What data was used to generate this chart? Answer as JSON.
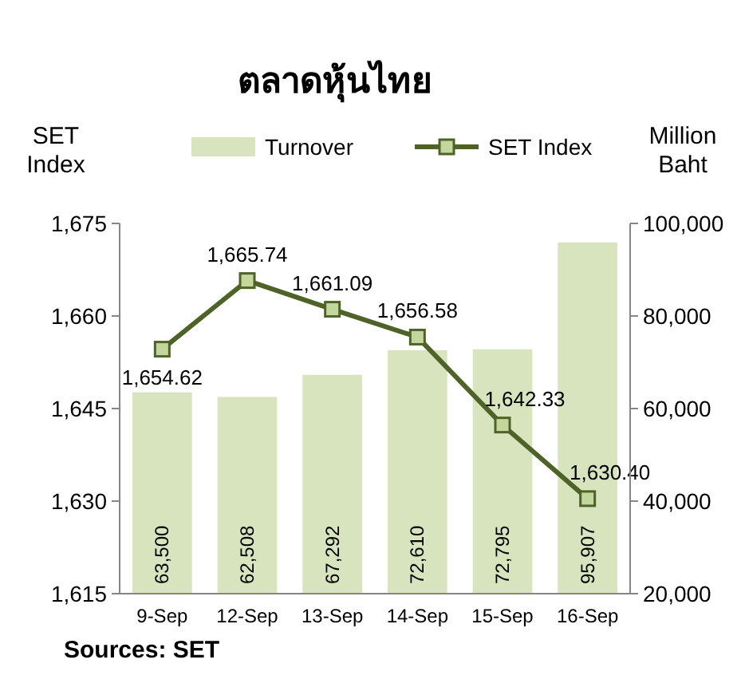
{
  "chart_data": {
    "type": "bar",
    "title": "ตลาดหุ้นไทย",
    "ylabel": "SET Index",
    "y2label": "Million Baht",
    "categories": [
      "9-Sep",
      "12-Sep",
      "13-Sep",
      "14-Sep",
      "15-Sep",
      "16-Sep"
    ],
    "series": [
      {
        "name": "Turnover",
        "axis": "y2",
        "color": "#d7e4bd",
        "values": [
          63500,
          62508,
          67292,
          72610,
          72795,
          95907
        ],
        "value_labels": [
          "63,500",
          "62,508",
          "67,292",
          "72,610",
          "72,795",
          "95,907"
        ]
      },
      {
        "name": "SET Index",
        "type": "line",
        "color": "#4f6228",
        "values": [
          1654.62,
          1665.74,
          1661.09,
          1656.58,
          1642.33,
          1630.4
        ],
        "value_labels": [
          "1,654.62",
          "1,665.74",
          "1,661.09",
          "1,656.58",
          "1,642.33",
          "1,630.40"
        ]
      }
    ],
    "ylim": [
      1615,
      1675
    ],
    "yticks": [
      {
        "value": 1615,
        "label": "1,615"
      },
      {
        "value": 1630,
        "label": "1,630"
      },
      {
        "value": 1645,
        "label": "1,645"
      },
      {
        "value": 1660,
        "label": "1,660"
      },
      {
        "value": 1675,
        "label": "1,675"
      }
    ],
    "y2lim": [
      20000,
      100000
    ],
    "y2ticks": [
      {
        "value": 20000,
        "label": "20,000"
      },
      {
        "value": 40000,
        "label": "40,000"
      },
      {
        "value": 60000,
        "label": "60,000"
      },
      {
        "value": 80000,
        "label": "80,000"
      },
      {
        "value": 100000,
        "label": "100,000"
      }
    ],
    "marker": "square",
    "legend": "top",
    "annotations": [
      "Sources: SET"
    ]
  }
}
